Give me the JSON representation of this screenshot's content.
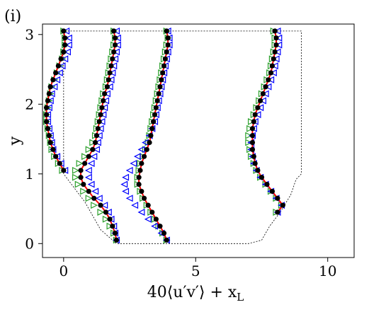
{
  "chart_data": {
    "type": "line",
    "panel_label": "(i)",
    "title": "",
    "xlabel": "40⟨u′v′⟩ + x_L",
    "xlabel_main": "40⟨u′v′⟩ + x",
    "xlabel_sub": "L",
    "ylabel": "y",
    "xlim": [
      -0.8,
      11.0
    ],
    "ylim": [
      -0.2,
      3.15
    ],
    "xticks": [
      0,
      5,
      10
    ],
    "yticks": [
      0,
      1,
      2,
      3
    ],
    "grid": false,
    "legend": "none",
    "colors": {
      "red": "#ff0000",
      "black": "#000000",
      "green": "#2ca02c",
      "blue": "#0000ff"
    },
    "geometry": {
      "x": [
        0,
        0,
        0.8,
        1.4,
        2.0,
        7.0,
        7.5,
        7.8,
        8.2,
        8.6,
        8.8,
        9.0,
        9.0,
        0
      ],
      "y": [
        3.05,
        1.0,
        0.6,
        0.2,
        0.0,
        0.0,
        0.05,
        0.25,
        0.45,
        0.7,
        0.92,
        1.0,
        3.05,
        3.05
      ]
    },
    "profiles": [
      {
        "x_location": 0,
        "y": [
          3.05,
          2.95,
          2.85,
          2.75,
          2.65,
          2.55,
          2.45,
          2.35,
          2.25,
          2.15,
          2.05,
          1.95,
          1.85,
          1.75,
          1.65,
          1.55,
          1.45,
          1.35,
          1.25,
          1.15,
          1.05
        ],
        "x": [
          0.0,
          0.05,
          0.05,
          0.0,
          -0.1,
          -0.2,
          -0.3,
          -0.4,
          -0.5,
          -0.55,
          -0.6,
          -0.65,
          -0.65,
          -0.65,
          -0.6,
          -0.55,
          -0.5,
          -0.4,
          -0.3,
          -0.15,
          0.0
        ],
        "green_x": [
          0.0,
          0.05,
          0.05,
          0.0,
          -0.05,
          -0.15,
          -0.25,
          -0.35,
          -0.45,
          -0.5,
          -0.55,
          -0.6,
          -0.65,
          -0.65,
          -0.6,
          -0.55,
          -0.5,
          -0.45,
          -0.35,
          -0.2,
          -0.05
        ],
        "blue_x": [
          0.1,
          0.2,
          0.2,
          0.15,
          0.05,
          -0.05,
          -0.15,
          -0.25,
          -0.35,
          -0.45,
          -0.5,
          -0.55,
          -0.6,
          -0.6,
          -0.55,
          -0.5,
          -0.45,
          -0.4,
          -0.25,
          -0.1,
          0.05
        ]
      },
      {
        "x_location": 2,
        "y": [
          3.05,
          2.95,
          2.85,
          2.75,
          2.65,
          2.55,
          2.45,
          2.35,
          2.25,
          2.15,
          2.05,
          1.95,
          1.85,
          1.75,
          1.65,
          1.55,
          1.45,
          1.35,
          1.25,
          1.15,
          1.05,
          0.95,
          0.85,
          0.75,
          0.65,
          0.55,
          0.45,
          0.35,
          0.25,
          0.15,
          0.05
        ],
        "x": [
          1.9,
          1.95,
          1.95,
          1.9,
          1.85,
          1.8,
          1.75,
          1.7,
          1.65,
          1.55,
          1.5,
          1.45,
          1.4,
          1.35,
          1.3,
          1.25,
          1.2,
          1.1,
          0.95,
          0.8,
          0.65,
          0.65,
          0.75,
          0.95,
          1.15,
          1.4,
          1.6,
          1.75,
          1.85,
          1.95,
          2.0
        ],
        "green_x": [
          1.9,
          1.95,
          1.9,
          1.85,
          1.8,
          1.75,
          1.7,
          1.65,
          1.6,
          1.5,
          1.45,
          1.4,
          1.35,
          1.3,
          1.25,
          1.2,
          1.1,
          0.95,
          0.8,
          0.6,
          0.45,
          0.45,
          0.55,
          0.75,
          0.95,
          1.15,
          1.4,
          1.6,
          1.75,
          1.9,
          2.0
        ],
        "blue_x": [
          2.0,
          2.05,
          2.05,
          2.0,
          1.95,
          1.9,
          1.85,
          1.8,
          1.75,
          1.65,
          1.6,
          1.55,
          1.5,
          1.45,
          1.4,
          1.35,
          1.3,
          1.25,
          1.15,
          1.05,
          0.95,
          0.95,
          1.05,
          1.2,
          1.35,
          1.55,
          1.7,
          1.8,
          1.9,
          1.95,
          2.0
        ]
      },
      {
        "x_location": 4,
        "y": [
          3.05,
          2.95,
          2.85,
          2.75,
          2.65,
          2.55,
          2.45,
          2.35,
          2.25,
          2.15,
          2.05,
          1.95,
          1.85,
          1.75,
          1.65,
          1.55,
          1.45,
          1.35,
          1.25,
          1.15,
          1.05,
          0.95,
          0.85,
          0.75,
          0.65,
          0.55,
          0.45,
          0.35,
          0.25,
          0.15,
          0.05
        ],
        "x": [
          3.9,
          3.95,
          3.95,
          3.9,
          3.85,
          3.8,
          3.75,
          3.7,
          3.65,
          3.6,
          3.55,
          3.5,
          3.45,
          3.4,
          3.35,
          3.3,
          3.25,
          3.15,
          3.05,
          2.95,
          2.9,
          2.85,
          2.85,
          2.95,
          3.05,
          3.2,
          3.35,
          3.5,
          3.65,
          3.8,
          3.9
        ],
        "green_x": [
          3.9,
          3.95,
          3.9,
          3.85,
          3.8,
          3.75,
          3.7,
          3.65,
          3.6,
          3.55,
          3.5,
          3.45,
          3.4,
          3.35,
          3.3,
          3.25,
          3.2,
          3.1,
          3.0,
          2.9,
          2.85,
          2.8,
          2.8,
          2.9,
          3.0,
          3.15,
          3.3,
          3.45,
          3.6,
          3.75,
          3.9
        ],
        "blue_x": [
          3.95,
          4.0,
          4.0,
          3.95,
          3.9,
          3.85,
          3.8,
          3.75,
          3.7,
          3.65,
          3.6,
          3.55,
          3.5,
          3.45,
          3.35,
          3.25,
          3.1,
          2.95,
          2.8,
          2.65,
          2.5,
          2.35,
          2.3,
          2.35,
          2.5,
          2.7,
          2.95,
          3.2,
          3.45,
          3.7,
          3.9
        ]
      },
      {
        "x_location": 8,
        "y": [
          3.05,
          2.95,
          2.85,
          2.75,
          2.65,
          2.55,
          2.45,
          2.35,
          2.25,
          2.15,
          2.05,
          1.95,
          1.85,
          1.75,
          1.65,
          1.55,
          1.45,
          1.35,
          1.25,
          1.15,
          1.05,
          0.95,
          0.85,
          0.75,
          0.65,
          0.55,
          0.45
        ],
        "x": [
          8.0,
          8.05,
          8.05,
          8.0,
          7.95,
          7.9,
          7.85,
          7.75,
          7.65,
          7.55,
          7.45,
          7.35,
          7.25,
          7.2,
          7.15,
          7.15,
          7.15,
          7.15,
          7.2,
          7.25,
          7.35,
          7.5,
          7.7,
          7.9,
          8.1,
          8.3,
          8.1
        ],
        "green_x": [
          7.95,
          8.0,
          8.0,
          7.95,
          7.9,
          7.85,
          7.8,
          7.7,
          7.6,
          7.5,
          7.4,
          7.3,
          7.2,
          7.1,
          7.05,
          7.0,
          7.0,
          7.05,
          7.1,
          7.2,
          7.3,
          7.45,
          7.65,
          7.85,
          8.05,
          8.25,
          8.05
        ],
        "blue_x": [
          8.1,
          8.15,
          8.15,
          8.1,
          8.05,
          8.0,
          7.95,
          7.85,
          7.75,
          7.65,
          7.55,
          7.45,
          7.35,
          7.25,
          7.2,
          7.15,
          7.1,
          7.1,
          7.15,
          7.2,
          7.3,
          7.45,
          7.65,
          7.85,
          8.05,
          8.25,
          8.1
        ]
      }
    ]
  }
}
